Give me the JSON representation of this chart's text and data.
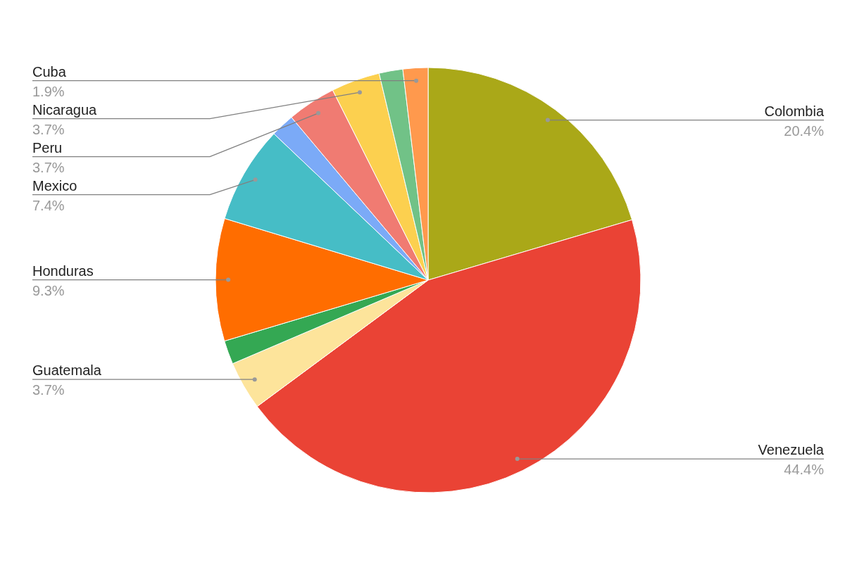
{
  "chart_data": {
    "type": "pie",
    "categories": [
      "Colombia",
      "Venezuela",
      "Guatemala",
      null,
      "Honduras",
      "Mexico",
      null,
      "Peru",
      "Nicaragua",
      null,
      "Cuba"
    ],
    "values": [
      20.4,
      44.4,
      3.7,
      1.8,
      9.3,
      7.4,
      1.8,
      3.7,
      3.7,
      1.8,
      1.9
    ],
    "value_labels": [
      "20.4%",
      "44.4%",
      "3.7%",
      null,
      "9.3%",
      "7.4%",
      null,
      "3.7%",
      "3.7%",
      null,
      "1.9%"
    ],
    "colors": [
      "#aaa818",
      "#ea4335",
      "#fde49b",
      "#34a853",
      "#ff6d00",
      "#46bdc6",
      "#7baaf7",
      "#f07b72",
      "#fcd04f",
      "#71c287",
      "#ff994d"
    ]
  }
}
